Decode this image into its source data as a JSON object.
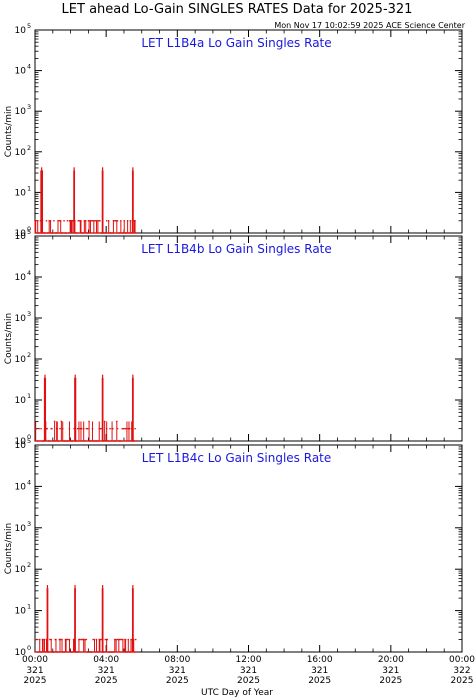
{
  "title": "LET ahead Lo-Gain SINGLES RATES Data for 2025-321",
  "timestamp": "Mon Nov 17 10:02:59 2025 ACE Science Center",
  "colors": {
    "data": "#e01010",
    "panel_title": "#1a1adc",
    "axes": "#000000"
  },
  "x_axis_label": "UTC Day of Year",
  "x_ticks": [
    {
      "time": "00:00",
      "doy": "321",
      "year": "2025",
      "hour": 0
    },
    {
      "time": "04:00",
      "doy": "321",
      "year": "2025",
      "hour": 4
    },
    {
      "time": "08:00",
      "doy": "321",
      "year": "2025",
      "hour": 8
    },
    {
      "time": "12:00",
      "doy": "321",
      "year": "2025",
      "hour": 12
    },
    {
      "time": "16:00",
      "doy": "321",
      "year": "2025",
      "hour": 16
    },
    {
      "time": "20:00",
      "doy": "321",
      "year": "2025",
      "hour": 20
    },
    {
      "time": "00:00",
      "doy": "322",
      "year": "2025",
      "hour": 24
    }
  ],
  "chart_data": [
    {
      "type": "scatter",
      "title": "LET L1B4a Lo Gain Singles Rate",
      "ylabel": "Counts/min",
      "yscale": "log",
      "ylim": [
        1,
        100000
      ],
      "xlim_hours": [
        0,
        24
      ],
      "y_tick_exponents": [
        0,
        1,
        2,
        3,
        4,
        5
      ],
      "bursts": [
        {
          "t_start": 0.3,
          "t_end": 0.45,
          "peak": 35
        },
        {
          "t_start": 2.15,
          "t_end": 2.25,
          "peak": 35
        },
        {
          "t_start": 3.75,
          "t_end": 3.85,
          "peak": 35
        },
        {
          "t_start": 5.45,
          "t_end": 5.55,
          "peak": 35
        }
      ],
      "baseline": {
        "t_start": 0.0,
        "t_end": 5.7,
        "values": [
          1,
          2
        ]
      }
    },
    {
      "type": "scatter",
      "title": "LET L1B4b Lo Gain Singles Rate",
      "ylabel": "Counts/min",
      "yscale": "log",
      "ylim": [
        1,
        100000
      ],
      "xlim_hours": [
        0,
        24
      ],
      "y_tick_exponents": [
        0,
        1,
        2,
        3,
        4,
        5
      ],
      "bursts": [
        {
          "t_start": 0.5,
          "t_end": 0.62,
          "peak": 35
        },
        {
          "t_start": 2.2,
          "t_end": 2.32,
          "peak": 35
        },
        {
          "t_start": 3.75,
          "t_end": 3.85,
          "peak": 35
        },
        {
          "t_start": 5.45,
          "t_end": 5.55,
          "peak": 35
        }
      ],
      "baseline": {
        "t_start": 0.0,
        "t_end": 5.7,
        "values": [
          1,
          2,
          3
        ]
      }
    },
    {
      "type": "scatter",
      "title": "LET L1B4c Lo Gain Singles Rate",
      "ylabel": "Counts/min",
      "yscale": "log",
      "ylim": [
        1,
        100000
      ],
      "xlim_hours": [
        0,
        24
      ],
      "y_tick_exponents": [
        0,
        1,
        2,
        3,
        4,
        5
      ],
      "bursts": [
        {
          "t_start": 0.65,
          "t_end": 0.75,
          "peak": 35
        },
        {
          "t_start": 2.2,
          "t_end": 2.3,
          "peak": 35
        },
        {
          "t_start": 3.75,
          "t_end": 3.85,
          "peak": 35
        },
        {
          "t_start": 5.45,
          "t_end": 5.55,
          "peak": 35
        }
      ],
      "baseline": {
        "t_start": 0.0,
        "t_end": 5.7,
        "values": [
          1,
          2
        ]
      }
    }
  ]
}
